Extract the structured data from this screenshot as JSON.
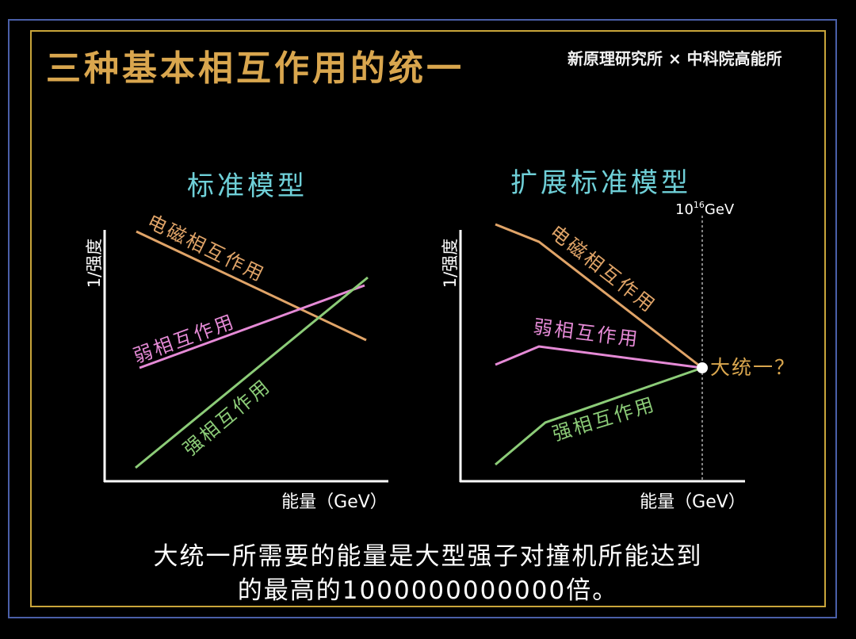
{
  "title": "三种基本相互作用的统一",
  "source": "新原理研究所 × 中科院高能所",
  "caption_line1": "大统一所需要的能量是大型强子对撞机所能达到",
  "caption_line2": "的最高的1000000000000倍。",
  "left_panel": {
    "heading": "标准模型",
    "y_label": "1/强度",
    "x_label": "能量（GeV）",
    "line_em": "电磁相互作用",
    "line_weak": "弱相互作用",
    "line_strong": "强相互作用"
  },
  "right_panel": {
    "heading": "扩展标准模型",
    "y_label": "1/强度",
    "x_label": "能量（GeV）",
    "line_em": "电磁相互作用",
    "line_weak": "弱相互作用",
    "line_strong": "强相互作用",
    "energy_mark_base": "10",
    "energy_mark_exp": "16",
    "energy_mark_unit": "GeV",
    "unification_label": "大统一？"
  },
  "colors": {
    "title": "#d9a64e",
    "heading": "#6fd0d8",
    "em_line": "#e0a468",
    "weak_line": "#e58ad6",
    "strong_line": "#8ccc78",
    "axis": "#ffffff",
    "frame_outer": "#4a5fa8",
    "frame_inner": "#c9a53a"
  }
}
